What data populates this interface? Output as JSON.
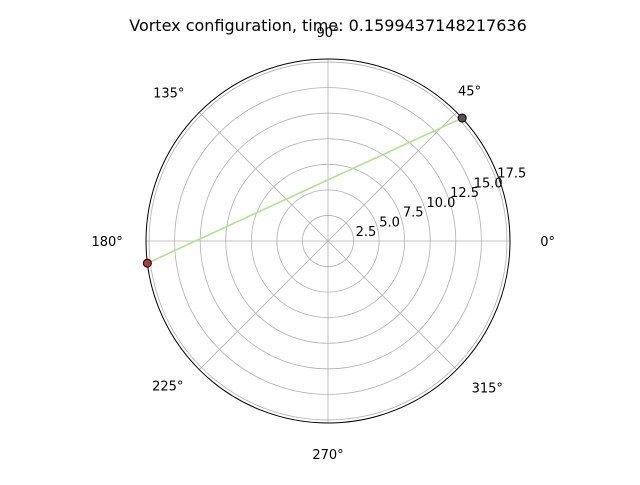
{
  "chart_data": {
    "type": "scatter",
    "projection": "polar",
    "title": "Vortex configuration, time: 0.1599437148217636",
    "theta_ticks": [
      "0°",
      "45°",
      "90°",
      "135°",
      "180°",
      "225°",
      "270°",
      "315°"
    ],
    "r_ticks": [
      "2.5",
      "5.0",
      "7.5",
      "10.0",
      "12.5",
      "15.0",
      "17.5"
    ],
    "r_tick_values": [
      2.5,
      5.0,
      7.5,
      10.0,
      12.5,
      15.0,
      17.5
    ],
    "rlim": [
      0,
      17.8
    ],
    "grid": true,
    "points": [
      {
        "theta_deg": 42.5,
        "r": 17.8,
        "color": "#555555"
      },
      {
        "theta_deg": 187.0,
        "r": 17.8,
        "color": "#b03a3a"
      }
    ],
    "trajectory": {
      "color": "#b5e08f",
      "path": [
        {
          "theta_deg": 42.5,
          "r": 17.8
        },
        {
          "theta_deg": 187.0,
          "r": 17.8
        }
      ]
    }
  }
}
